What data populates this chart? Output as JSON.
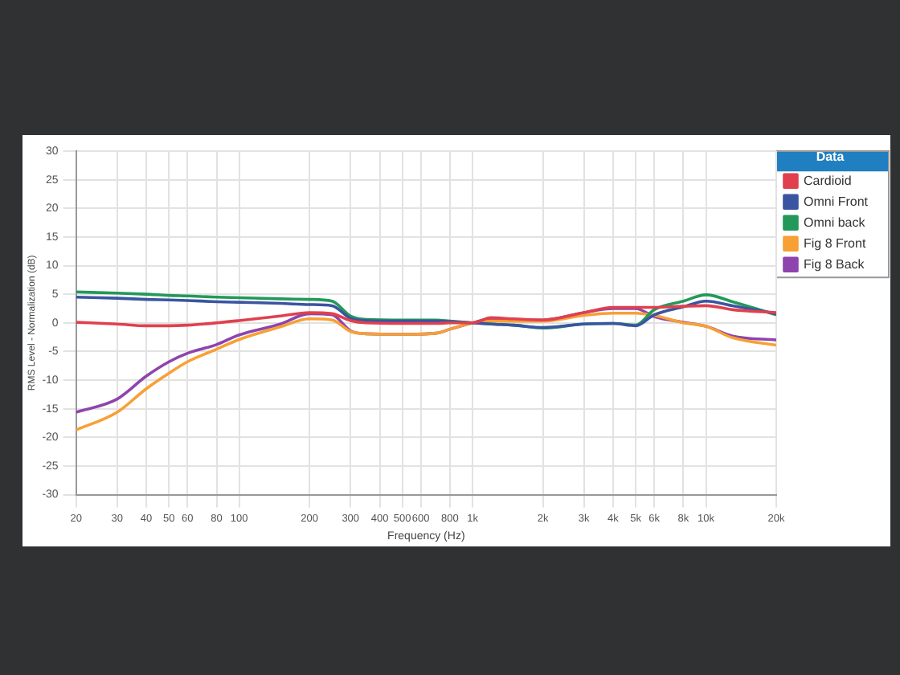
{
  "chart_data": {
    "type": "line",
    "xlabel": "Frequency (Hz)",
    "ylabel": "RMS Level - Normalization (dB)",
    "legend_title": "Data",
    "x": [
      20,
      30,
      40,
      50,
      60,
      80,
      100,
      150,
      200,
      250,
      300,
      350,
      500,
      700,
      800,
      1000,
      1200,
      1500,
      2000,
      3000,
      4000,
      5000,
      6000,
      8000,
      10000,
      13000,
      20000
    ],
    "series": [
      {
        "name": "Cardioid",
        "color": "#e0404e",
        "values": [
          0.1,
          -0.2,
          -0.5,
          -0.5,
          -0.4,
          0,
          0.4,
          1.2,
          1.8,
          1.6,
          0.4,
          0,
          -0.1,
          -0.1,
          0,
          0,
          0.9,
          0.7,
          0.5,
          1.8,
          2.7,
          2.7,
          2.7,
          2.9,
          3.0,
          2.3,
          1.8
        ]
      },
      {
        "name": "Omni Front",
        "color": "#3a55a0",
        "values": [
          4.5,
          4.3,
          4.1,
          4.0,
          3.9,
          3.7,
          3.6,
          3.4,
          3.2,
          3.0,
          0.8,
          0.4,
          0.3,
          0.3,
          0.2,
          0,
          -0.2,
          -0.4,
          -0.8,
          -0.2,
          -0.1,
          -0.5,
          1.4,
          2.8,
          3.8,
          3.0,
          1.6
        ]
      },
      {
        "name": "Omni back",
        "color": "#22995a",
        "values": [
          5.4,
          5.2,
          5.0,
          4.8,
          4.7,
          4.5,
          4.4,
          4.2,
          4.1,
          3.8,
          1.2,
          0.6,
          0.5,
          0.5,
          0.3,
          0,
          -0.2,
          -0.4,
          -0.9,
          -0.2,
          -0.1,
          -0.4,
          2.3,
          3.8,
          4.9,
          3.7,
          1.4
        ]
      },
      {
        "name": "Fig 8 Front",
        "color": "#f7a035",
        "values": [
          -18.7,
          -15.6,
          -11.5,
          -8.8,
          -6.8,
          -4.6,
          -2.9,
          -0.7,
          0.7,
          0.5,
          -1.5,
          -1.9,
          -2.0,
          -1.8,
          -1.1,
          0,
          0.3,
          0.3,
          0.3,
          1.3,
          1.7,
          1.7,
          1.3,
          0,
          -0.6,
          -2.6,
          -3.9
        ]
      },
      {
        "name": "Fig 8 Back",
        "color": "#8e44ad",
        "values": [
          -15.6,
          -13.3,
          -9.3,
          -6.8,
          -5.3,
          -3.8,
          -2.1,
          -0.2,
          1.6,
          1.4,
          -1.4,
          -1.9,
          -2.0,
          -1.8,
          -1.1,
          0,
          0.7,
          0.6,
          0.5,
          1.8,
          2.5,
          2.5,
          1.1,
          0.1,
          -0.6,
          -2.3,
          -3.0
        ]
      }
    ],
    "log": "x",
    "xlim": [
      20,
      20000
    ],
    "ylim": [
      -30,
      30
    ],
    "xticks": [
      20,
      30,
      40,
      50,
      60,
      80,
      100,
      200,
      300,
      400,
      500,
      600,
      800,
      {
        "value": 1000,
        "label": "1k"
      },
      {
        "value": 2000,
        "label": "2k"
      },
      {
        "value": 3000,
        "label": "3k"
      },
      {
        "value": 4000,
        "label": "4k"
      },
      {
        "value": 5000,
        "label": "5k"
      },
      {
        "value": 6000,
        "label": "6k"
      },
      {
        "value": 8000,
        "label": "8k"
      },
      {
        "value": 10000,
        "label": "10k"
      },
      {
        "value": 20000,
        "label": "20k"
      }
    ],
    "yticks": [
      -30,
      -25,
      -20,
      -15,
      -10,
      -5,
      0,
      5,
      10,
      15,
      20,
      25,
      30
    ],
    "grid": true,
    "legend": "top right"
  }
}
